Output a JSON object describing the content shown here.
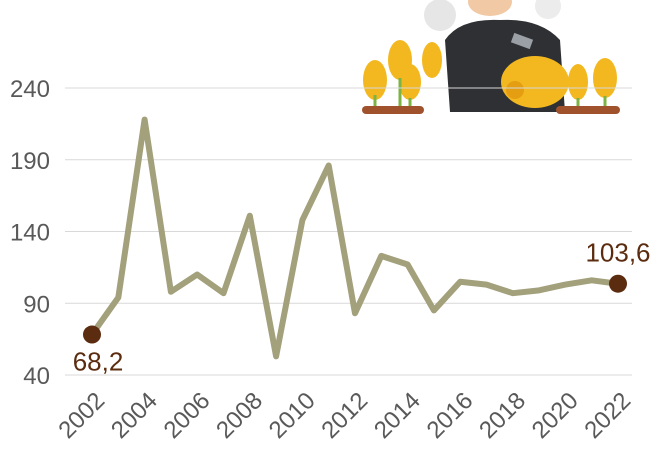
{
  "chart_data": {
    "type": "line",
    "x": [
      2002,
      2003,
      2004,
      2005,
      2006,
      2007,
      2008,
      2009,
      2010,
      2011,
      2012,
      2013,
      2014,
      2015,
      2016,
      2017,
      2018,
      2019,
      2020,
      2021,
      2022
    ],
    "series": [
      {
        "color": "#a3a07c",
        "values": [
          68.2,
          94,
          218,
          98,
          110,
          97,
          151,
          53,
          148,
          186,
          83,
          123,
          117,
          85,
          105,
          103,
          97,
          99,
          103,
          106,
          103.6
        ],
        "value_labels": [
          "68,2",
          null,
          null,
          null,
          null,
          null,
          null,
          null,
          null,
          null,
          null,
          null,
          null,
          null,
          null,
          null,
          null,
          null,
          null,
          null,
          "103,6"
        ],
        "marker_color": "#5b2c0f"
      }
    ],
    "xlim": [
      2002,
      2022
    ],
    "xticks": [
      2002,
      2004,
      2006,
      2008,
      2010,
      2012,
      2014,
      2016,
      2018,
      2020,
      2022
    ],
    "ylim": [
      40,
      240
    ],
    "yticks": [
      40,
      90,
      140,
      190,
      240
    ],
    "grid": true
  }
}
